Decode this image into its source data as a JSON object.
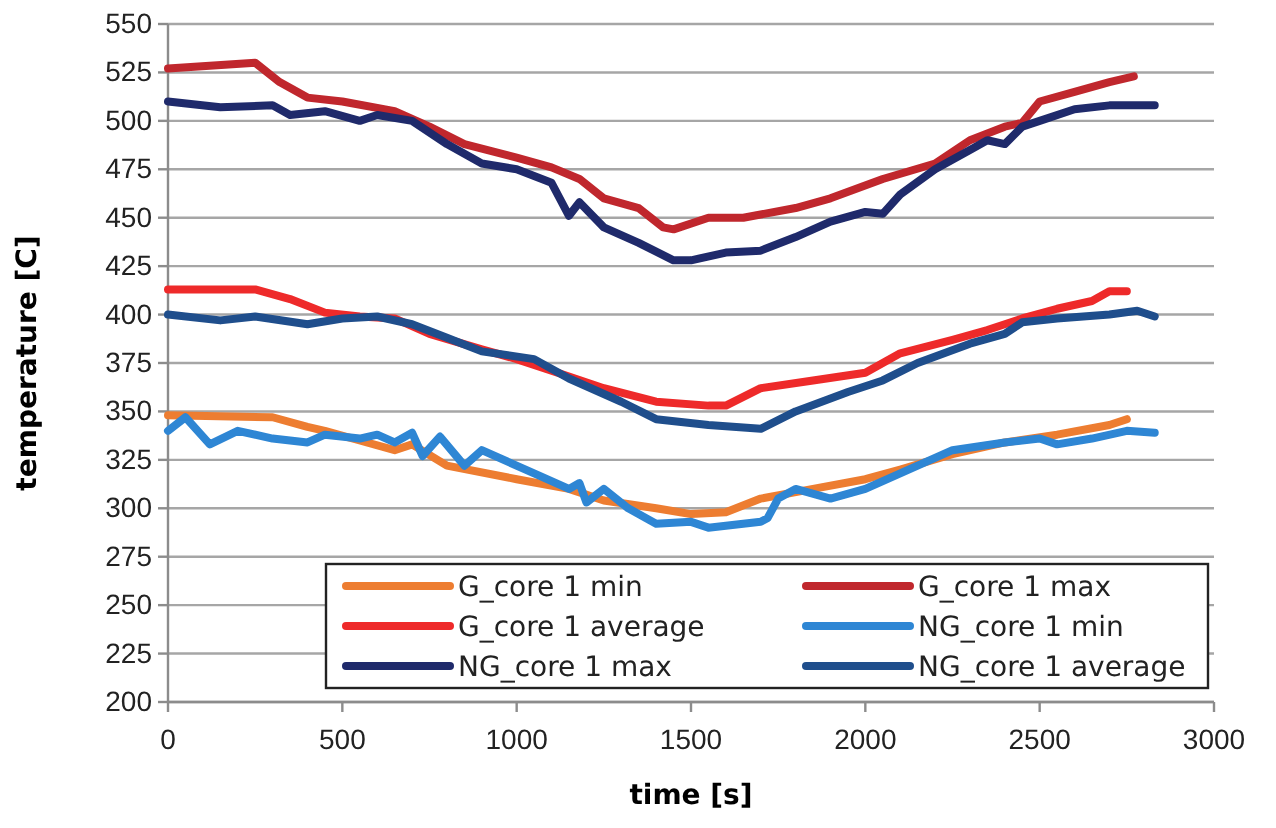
{
  "chart_data": {
    "type": "line",
    "xlabel": "time [s]",
    "ylabel": "temperature [C]",
    "xlim": [
      0,
      3000
    ],
    "xticks": [
      0,
      500,
      1000,
      1500,
      2000,
      2500,
      3000
    ],
    "ylim": [
      200,
      550
    ],
    "yticks": [
      200,
      225,
      250,
      275,
      300,
      325,
      350,
      375,
      400,
      425,
      450,
      475,
      500,
      525,
      550
    ],
    "grid": "y",
    "legend": "bottom",
    "line_style": "solid",
    "marker": "none",
    "series": [
      {
        "name": "G_core 1 min",
        "color": "#ed7d31",
        "x": [
          0,
          300,
          400,
          450,
          550,
          650,
          700,
          800,
          1000,
          1150,
          1250,
          1400,
          1500,
          1600,
          1700,
          1850,
          2000,
          2100,
          2250,
          2400,
          2550,
          2700,
          2750
        ],
        "values": [
          348,
          347,
          342,
          340,
          335,
          330,
          333,
          322,
          315,
          310,
          304,
          300,
          297,
          298,
          305,
          310,
          315,
          320,
          328,
          334,
          338,
          343,
          346
        ]
      },
      {
        "name": "G_core 1 max",
        "color": "#c0272d",
        "x": [
          0,
          250,
          320,
          400,
          500,
          650,
          750,
          850,
          1000,
          1100,
          1180,
          1250,
          1350,
          1420,
          1450,
          1550,
          1650,
          1800,
          1900,
          2050,
          2200,
          2300,
          2400,
          2450,
          2500,
          2600,
          2700,
          2770
        ],
        "values": [
          527,
          530,
          520,
          512,
          510,
          505,
          497,
          488,
          481,
          476,
          470,
          460,
          455,
          445,
          444,
          450,
          450,
          455,
          460,
          470,
          478,
          490,
          497,
          499,
          510,
          515,
          520,
          523
        ]
      },
      {
        "name": "G_core 1 average",
        "color": "#ee2a2a",
        "x": [
          0,
          250,
          350,
          450,
          550,
          650,
          750,
          900,
          1000,
          1150,
          1250,
          1400,
          1550,
          1600,
          1700,
          1850,
          2000,
          2100,
          2250,
          2350,
          2450,
          2550,
          2650,
          2700,
          2750
        ],
        "values": [
          413,
          413,
          408,
          401,
          399,
          398,
          390,
          382,
          377,
          368,
          362,
          355,
          353,
          353,
          362,
          366,
          370,
          380,
          387,
          392,
          398,
          403,
          407,
          412,
          412
        ]
      },
      {
        "name": "NG_core 1 min",
        "color": "#2e86d4",
        "x": [
          0,
          50,
          120,
          200,
          300,
          400,
          450,
          550,
          600,
          650,
          700,
          730,
          780,
          850,
          900,
          1050,
          1150,
          1180,
          1200,
          1250,
          1320,
          1400,
          1500,
          1550,
          1700,
          1720,
          1750,
          1800,
          1900,
          2000,
          2100,
          2250,
          2400,
          2500,
          2550,
          2650,
          2750,
          2830
        ],
        "values": [
          340,
          347,
          333,
          340,
          336,
          334,
          338,
          336,
          338,
          334,
          339,
          327,
          337,
          322,
          330,
          318,
          310,
          313,
          303,
          310,
          300,
          292,
          293,
          290,
          293,
          295,
          305,
          310,
          305,
          310,
          318,
          330,
          334,
          336,
          333,
          336,
          340,
          339
        ]
      },
      {
        "name": "NG_core 1 max",
        "color": "#1f2a6b",
        "x": [
          0,
          150,
          300,
          350,
          450,
          550,
          600,
          700,
          800,
          900,
          1000,
          1100,
          1150,
          1180,
          1250,
          1350,
          1450,
          1500,
          1600,
          1700,
          1800,
          1900,
          2000,
          2050,
          2100,
          2200,
          2300,
          2350,
          2400,
          2450,
          2500,
          2600,
          2700,
          2830
        ],
        "values": [
          510,
          507,
          508,
          503,
          505,
          500,
          503,
          500,
          488,
          478,
          475,
          468,
          451,
          458,
          445,
          437,
          428,
          428,
          432,
          433,
          440,
          448,
          453,
          452,
          462,
          475,
          485,
          490,
          488,
          497,
          500,
          506,
          508,
          508
        ]
      },
      {
        "name": "NG_core 1 average",
        "color": "#1f4e8c",
        "x": [
          0,
          150,
          250,
          400,
          500,
          600,
          700,
          800,
          900,
          1050,
          1150,
          1300,
          1400,
          1550,
          1700,
          1800,
          1950,
          2050,
          2150,
          2300,
          2400,
          2450,
          2550,
          2700,
          2780,
          2830
        ],
        "values": [
          400,
          397,
          399,
          395,
          398,
          399,
          395,
          388,
          381,
          377,
          367,
          355,
          346,
          343,
          341,
          350,
          360,
          366,
          375,
          385,
          390,
          396,
          398,
          400,
          402,
          399
        ]
      }
    ]
  }
}
